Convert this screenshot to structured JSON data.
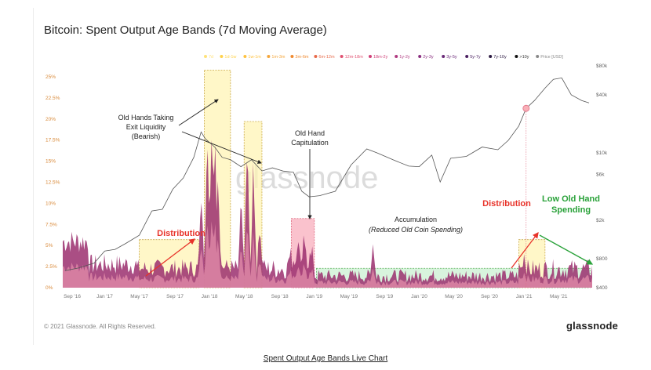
{
  "page": {
    "copyright": "© 2021 Glassnode. All Rights Reserved.",
    "logo": "glassnode",
    "live_link": "Spent Output Age Bands Live Chart",
    "watermark": "glassnode"
  },
  "colors": {
    "band_main": "#9b2f6e",
    "band_light": "#e08aa8",
    "price_line": "#555555",
    "red": "#e8332a",
    "green": "#2aa23a",
    "box_yellow": "#fff3b0",
    "box_pink": "#f8a8b8",
    "box_green": "#c8f0cf"
  },
  "chart_data": {
    "type": "area",
    "title": "Bitcoin: Spent Output Age Bands (7d Moving Average)",
    "x_ticks": [
      "Sep '16",
      "Jan '17",
      "May '17",
      "Sep '17",
      "Jan '18",
      "May '18",
      "Sep '18",
      "Jan '19",
      "May '19",
      "Sep '19",
      "Jan '20",
      "May '20",
      "Sep '20",
      "Jan '21",
      "May '21"
    ],
    "y_left_ticks": [
      "0%",
      "2.5%",
      "5%",
      "7.5%",
      "10%",
      "12.5%",
      "15%",
      "17.5%",
      "20%",
      "22.5%",
      "25%"
    ],
    "ylim_left": [
      0,
      25
    ],
    "y_right_ticks": [
      "$400",
      "$800",
      "$2k",
      "$6k",
      "$10k",
      "$40k",
      "$80k"
    ],
    "ylim_right": [
      400,
      80000
    ],
    "y_right_scale": "log",
    "legend": [
      {
        "label": "7d",
        "color": "#ffe27a"
      },
      {
        "label": "1d-1w",
        "color": "#ffd24a"
      },
      {
        "label": "1w-1m",
        "color": "#ffc240"
      },
      {
        "label": "1m-3m",
        "color": "#f5a63a"
      },
      {
        "label": "3m-6m",
        "color": "#f08a30"
      },
      {
        "label": "6m-12m",
        "color": "#e86a4a"
      },
      {
        "label": "12m-18m",
        "color": "#e05070"
      },
      {
        "label": "18m-2y",
        "color": "#d04078"
      },
      {
        "label": "1y-2y",
        "color": "#b03a80"
      },
      {
        "label": "2y-3y",
        "color": "#8a2f80"
      },
      {
        "label": "3y-5y",
        "color": "#6a2a78"
      },
      {
        "label": "5y-7y",
        "color": "#4a2060"
      },
      {
        "label": "7y-10y",
        "color": "#2a1840"
      },
      {
        "label": ">10y",
        "color": "#111111"
      },
      {
        "label": "Price [USD]",
        "color": "#888888"
      }
    ],
    "price_series": {
      "x": [
        2016.62,
        2016.75,
        2016.9,
        2017.0,
        2017.1,
        2017.2,
        2017.33,
        2017.45,
        2017.55,
        2017.65,
        2017.75,
        2017.85,
        2017.92,
        2017.96,
        2018.05,
        2018.12,
        2018.2,
        2018.3,
        2018.4,
        2018.5,
        2018.6,
        2018.7,
        2018.8,
        2018.88,
        2018.95,
        2019.05,
        2019.2,
        2019.35,
        2019.5,
        2019.6,
        2019.75,
        2019.9,
        2020.0,
        2020.12,
        2020.2,
        2020.3,
        2020.45,
        2020.6,
        2020.75,
        2020.85,
        2020.95,
        2021.02,
        2021.1,
        2021.2,
        2021.28,
        2021.36,
        2021.45,
        2021.55,
        2021.62
      ],
      "y": [
        600,
        640,
        720,
        960,
        1000,
        1150,
        1400,
        2500,
        2600,
        4200,
        5500,
        9000,
        16500,
        14000,
        11500,
        9000,
        8500,
        7200,
        8500,
        6500,
        7000,
        6500,
        6300,
        4000,
        3500,
        3600,
        4000,
        7500,
        11000,
        10000,
        8500,
        7300,
        7200,
        9500,
        5000,
        8800,
        9200,
        11500,
        10800,
        13500,
        19000,
        29000,
        35000,
        47000,
        58000,
        60000,
        40000,
        35000,
        33000
      ]
    },
    "spikes": {
      "x": [
        2017.92,
        2017.98,
        2018.02,
        2018.05,
        2018.08,
        2018.3,
        2018.36,
        2018.42,
        2018.48,
        2018.85,
        2018.9,
        2019.56,
        2021.0
      ],
      "y": [
        15,
        22,
        25,
        20,
        18,
        12,
        19,
        17,
        10,
        8,
        7,
        6.5,
        5
      ]
    },
    "annotations": [
      {
        "text": "Old Hands Taking",
        "kind": "black"
      },
      {
        "text": "Exit Liquidity",
        "kind": "black"
      },
      {
        "text": "(Bearish)",
        "kind": "black"
      },
      {
        "text": "Old Hand",
        "kind": "black"
      },
      {
        "text": "Capitulation",
        "kind": "black"
      },
      {
        "text": "Accumulation",
        "kind": "black"
      },
      {
        "text": "(Reduced Old Coin Spending)",
        "kind": "italic"
      },
      {
        "text": "Distribution",
        "kind": "red"
      },
      {
        "text": "Distribution",
        "kind": "red"
      },
      {
        "text": "Low Old Hand",
        "kind": "green"
      },
      {
        "text": "Spending",
        "kind": "green"
      }
    ],
    "grid": false,
    "legend_position": "top-right"
  }
}
